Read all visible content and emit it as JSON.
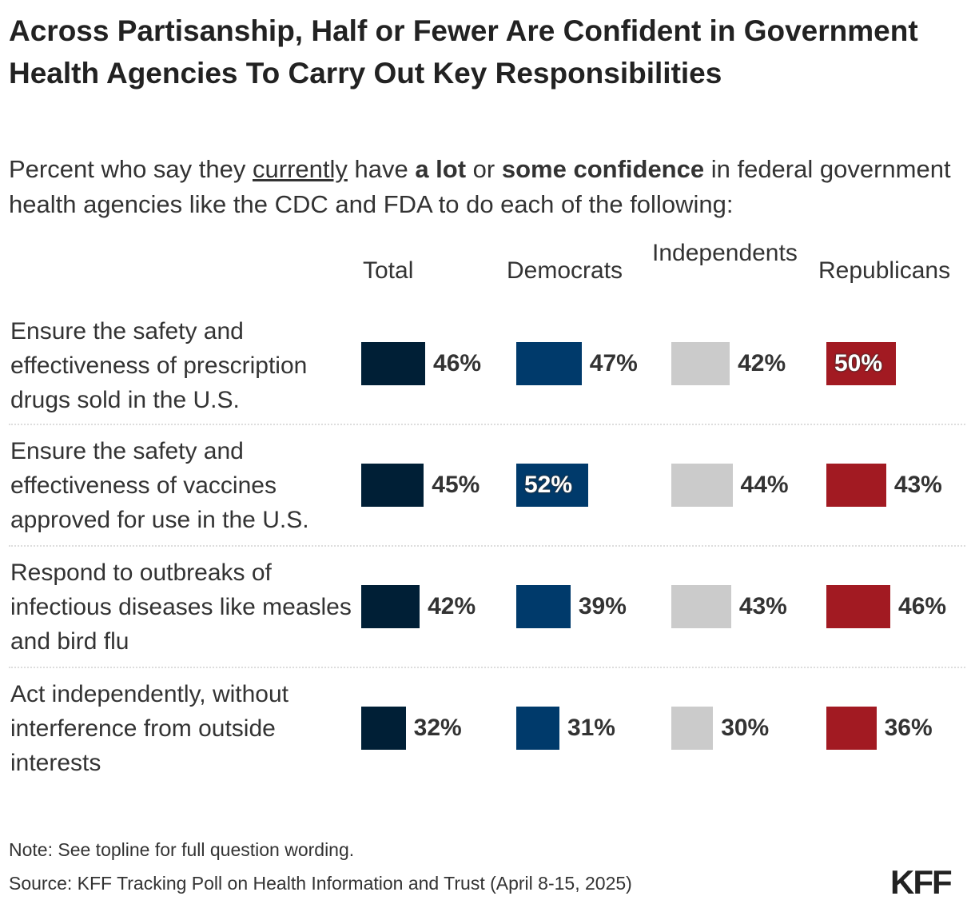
{
  "chart_data": {
    "type": "bar",
    "title": "Across Partisanship, Half or Fewer Are Confident in Government Health Agencies To Carry Out Key Responsibilities",
    "subtitle": {
      "pre": "Percent who say they ",
      "underlined": "currently",
      "mid1": " have ",
      "bold1": "a lot",
      "mid2": " or ",
      "bold2": "some confidence",
      "post": " in federal government health agencies like the CDC and FDA to do each of the following:"
    },
    "categories": [
      "Ensure the safety and effectiveness of prescription drugs sold in the U.S.",
      "Ensure the safety and effectiveness of vaccines approved for use in the U.S.",
      "Respond to outbreaks of infectious diseases like measles and bird flu",
      "Act independently, without interference from outside interests"
    ],
    "series": [
      {
        "name": "Total",
        "color": "#001F36",
        "values": [
          46,
          45,
          42,
          32
        ]
      },
      {
        "name": "Democrats",
        "color": "#003A6B",
        "values": [
          47,
          52,
          39,
          31
        ]
      },
      {
        "name": "Independents",
        "color": "#CBCBCB",
        "values": [
          42,
          44,
          43,
          30
        ]
      },
      {
        "name": "Republicans",
        "color": "#A21A22",
        "values": [
          50,
          43,
          46,
          36
        ]
      }
    ],
    "value_suffix": "%",
    "grid": false,
    "legend": "column headers"
  },
  "footer": {
    "note": "Note: See topline for full question wording.",
    "source": "Source: KFF Tracking Poll on Health Information and Trust (April 8-15, 2025)",
    "logo": "KFF"
  }
}
